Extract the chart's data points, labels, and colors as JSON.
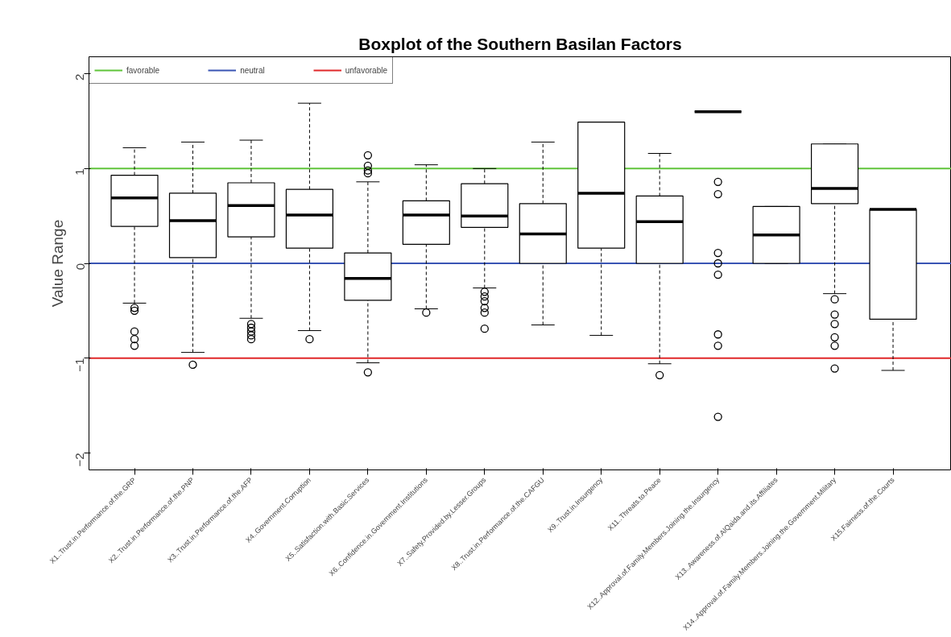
{
  "chart_data": {
    "type": "box",
    "title": "Boxplot of the Southern Basilan Factors",
    "ylabel": "Value Range",
    "categories": [
      "X1..Trust.in.Performance.of.the.GRP",
      "X2..Trust.in.Performance.of.the.PNP",
      "X3..Trust.in.Performance.of.the.AFP",
      "X4..Government.Corruption",
      "X5..Satisfaction.with.Basic.Services",
      "X6..Confidence.in.Government.Institutions",
      "X7..Safety.Provided.by.Lesser.Groups",
      "X8..Trust.in.Performance.of.the.CAFGU",
      "X9..Trust.in.Insurgency",
      "X11..Threats.to.Peace",
      "X12..Approval.of.Family.Members.Joining.the.Insurgency",
      "X13..Awareness.of.AlQaida.and.its.Affiliates",
      "X14..Approval.of.Family.Members.Joining.the.Government.Military",
      "X15.Fairness.of.the.Courts"
    ],
    "boxes": [
      {
        "low": -0.42,
        "q1": 0.39,
        "median": 0.69,
        "q3": 0.93,
        "high": 1.22,
        "outliers": [
          -0.47,
          -0.5,
          -0.72,
          -0.8,
          -0.87
        ]
      },
      {
        "low": -0.94,
        "q1": 0.06,
        "median": 0.45,
        "q3": 0.74,
        "high": 1.28,
        "outliers": [
          -1.07
        ]
      },
      {
        "low": -0.58,
        "q1": 0.28,
        "median": 0.61,
        "q3": 0.85,
        "high": 1.3,
        "outliers": [
          -0.64,
          -0.68,
          -0.72,
          -0.76,
          -0.8
        ]
      },
      {
        "low": -0.71,
        "q1": 0.16,
        "median": 0.51,
        "q3": 0.78,
        "high": 1.69,
        "outliers": [
          -0.8
        ]
      },
      {
        "low": -1.05,
        "q1": -0.39,
        "median": -0.16,
        "q3": 0.11,
        "high": 0.86,
        "outliers": [
          1.14,
          1.03,
          0.98,
          0.95,
          -1.15
        ]
      },
      {
        "low": -0.48,
        "q1": 0.2,
        "median": 0.51,
        "q3": 0.66,
        "high": 1.04,
        "outliers": [
          -0.52
        ]
      },
      {
        "low": -0.26,
        "q1": 0.38,
        "median": 0.5,
        "q3": 0.84,
        "high": 1.0,
        "outliers": [
          -0.3,
          -0.35,
          -0.4,
          -0.47,
          -0.52,
          -0.69
        ]
      },
      {
        "low": -0.65,
        "q1": 0.0,
        "median": 0.31,
        "q3": 0.63,
        "high": 1.28
      },
      {
        "low": -0.76,
        "q1": 0.16,
        "median": 0.74,
        "q3": 1.49,
        "high": 1.49
      },
      {
        "low": -1.06,
        "q1": 0.0,
        "median": 0.44,
        "q3": 0.71,
        "high": 1.16,
        "outliers": [
          -1.18
        ]
      },
      {
        "low": 1.6,
        "q1": 1.6,
        "median": 1.6,
        "q3": 1.6,
        "high": 1.6,
        "outliers": [
          0.86,
          0.73,
          0.11,
          0.0,
          -0.12,
          -0.75,
          -0.87,
          -1.62
        ]
      },
      {
        "low": 0.0,
        "q1": 0.0,
        "median": 0.3,
        "q3": 0.6,
        "high": 0.6
      },
      {
        "low": -0.32,
        "q1": 0.63,
        "median": 0.79,
        "q3": 1.26,
        "high": 1.26,
        "outliers": [
          -0.38,
          -0.54,
          -0.64,
          -0.78,
          -0.87,
          -1.11
        ]
      },
      {
        "low": -1.13,
        "q1": -0.59,
        "median": 0.57,
        "q3": 0.57,
        "high": 0.57
      }
    ],
    "ref_lines": [
      {
        "axis": "y",
        "value": 1,
        "label": "favorable",
        "color": "#5fc43a"
      },
      {
        "axis": "y",
        "value": 0,
        "label": "neutral",
        "color": "#3a55b4"
      },
      {
        "axis": "y",
        "value": -1,
        "label": "unfavorable",
        "color": "#e0282a"
      }
    ],
    "ylim": [
      -2.18,
      2.18
    ],
    "yticks": [
      -2,
      -1,
      0,
      1,
      2
    ],
    "grid": false,
    "legend": "top left"
  }
}
